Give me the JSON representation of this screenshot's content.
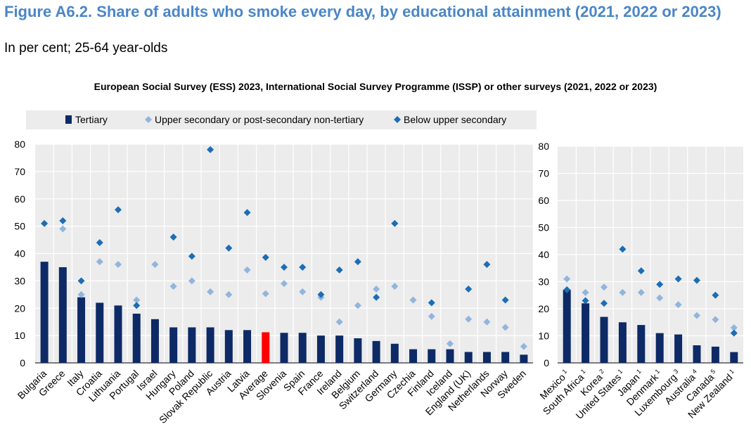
{
  "figure": {
    "title": "Figure A6.2. Share of adults who smoke every day, by educational attainment (2021, 2022 or 2023)",
    "subtitle": "In per cent; 25-64 year-olds",
    "panel_title": "European Social Survey (ESS) 2023, International Social Survey Programme (ISSP) or other surveys (2021, 2022 or 2023)"
  },
  "legend": {
    "tertiary": "Tertiary",
    "upper_secondary": "Upper secondary or post-secondary non-tertiary",
    "below_upper_secondary": "Below upper secondary"
  },
  "colors": {
    "tertiary": "#0d2a66",
    "upper_secondary": "#92b5dd",
    "below_upper_secondary": "#1c6db5",
    "average_highlight": "#ff0000",
    "plot_background": "#ececec"
  },
  "chart_data": [
    {
      "type": "bar",
      "ylim": [
        0,
        80
      ],
      "yticks": [
        0,
        10,
        20,
        30,
        40,
        50,
        60,
        70,
        80
      ],
      "grid": true,
      "legend_position": "top",
      "highlight_category": "Average",
      "categories": [
        "Bulgaria",
        "Greece",
        "Italy",
        "Croatia",
        "Lithuania",
        "Portugal",
        "Israel",
        "Hungary",
        "Poland",
        "Slovak Republic",
        "Austria",
        "Latvia",
        "Average",
        "Slovenia",
        "Spain",
        "France",
        "Ireland",
        "Belgium",
        "Switzerland",
        "Germany",
        "Czechia",
        "Finland",
        "Iceland",
        "England (UK)",
        "Netherlands",
        "Norway",
        "Sweden"
      ],
      "category_notes": [
        "",
        "",
        "",
        "",
        "",
        "",
        "",
        "",
        "",
        "",
        "",
        "",
        "",
        "",
        "",
        "",
        "",
        "",
        "",
        "",
        "",
        "",
        "",
        "",
        "",
        "",
        ""
      ],
      "series": [
        {
          "name": "Tertiary",
          "mark": "bar",
          "values": [
            37,
            35,
            24,
            22,
            21,
            18,
            16,
            13,
            13,
            13,
            12,
            12,
            11.2,
            11,
            11,
            10,
            10,
            9,
            8,
            7,
            5,
            5,
            5,
            4,
            4,
            4,
            3
          ]
        },
        {
          "name": "Upper secondary or post-secondary non-tertiary",
          "mark": "diamond",
          "values": [
            null,
            49,
            25,
            37,
            36,
            23,
            36,
            28,
            30,
            26,
            25,
            34,
            25.3,
            29,
            26,
            24,
            15,
            21,
            27,
            28,
            23,
            17,
            7,
            16,
            15,
            13,
            6
          ]
        },
        {
          "name": "Below upper secondary",
          "mark": "diamond",
          "values": [
            51,
            52,
            30,
            44,
            56,
            21,
            null,
            46,
            39,
            78,
            42,
            55,
            38.6,
            35,
            35,
            25,
            34,
            37,
            24,
            51,
            null,
            22,
            null,
            27,
            36,
            23,
            null
          ]
        }
      ]
    },
    {
      "type": "bar",
      "ylim": [
        0,
        80
      ],
      "yticks": [
        0,
        10,
        20,
        30,
        40,
        50,
        60,
        70,
        80
      ],
      "grid": true,
      "categories": [
        "Mexico",
        "South Africa",
        "Korea",
        "United States",
        "Japan",
        "Denmark",
        "Luxembourg",
        "Australia",
        "Canada",
        "New Zealand"
      ],
      "category_notes": [
        "1",
        "1",
        "2",
        "1",
        "1",
        "1",
        "3",
        "4",
        "5",
        "1"
      ],
      "series": [
        {
          "name": "Tertiary",
          "mark": "bar",
          "values": [
            27,
            22,
            17,
            15,
            14,
            11,
            10.5,
            6.5,
            6,
            4
          ]
        },
        {
          "name": "Upper secondary or post-secondary non-tertiary",
          "mark": "diamond",
          "values": [
            31,
            26,
            28,
            26,
            26,
            24,
            21.5,
            17.5,
            16,
            13
          ]
        },
        {
          "name": "Below upper secondary",
          "mark": "diamond",
          "values": [
            27,
            23,
            22,
            42,
            34,
            29,
            31,
            30.5,
            25,
            11
          ]
        }
      ]
    }
  ]
}
